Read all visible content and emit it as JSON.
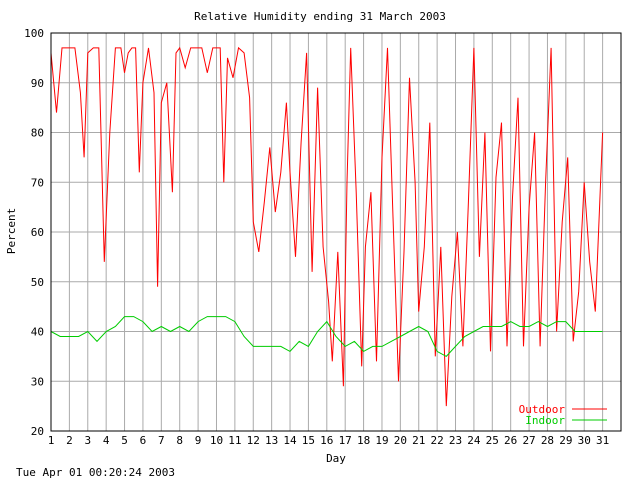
{
  "chart_data": {
    "type": "line",
    "title": "Relative Humidity ending 31 March 2003",
    "xlabel": "Day",
    "ylabel": "Percent",
    "xlim": [
      1,
      32
    ],
    "ylim": [
      20,
      100
    ],
    "x_ticks": [
      1,
      2,
      3,
      4,
      5,
      6,
      7,
      8,
      9,
      10,
      11,
      12,
      13,
      14,
      15,
      16,
      17,
      18,
      19,
      20,
      21,
      22,
      23,
      24,
      25,
      26,
      27,
      28,
      29,
      30,
      31
    ],
    "x_tick_labels": [
      "1",
      "2",
      "3",
      "4",
      "5",
      "6",
      "7",
      "8",
      "9",
      "10",
      "11",
      "12",
      "13",
      "14",
      "15",
      "16",
      "17",
      "18",
      "19",
      "20",
      "21",
      "22",
      "23",
      "24",
      "25",
      "26",
      "27",
      "28",
      "29",
      "30",
      "31"
    ],
    "y_ticks": [
      20,
      30,
      40,
      50,
      60,
      70,
      80,
      90,
      100
    ],
    "y_tick_labels": [
      "20",
      "30",
      "40",
      "50",
      "60",
      "70",
      "80",
      "90",
      "100"
    ],
    "grid": true,
    "legend_position": "bottom-right",
    "series": [
      {
        "name": "Outdoor",
        "color": "#ff0000",
        "points": [
          [
            1.0,
            96
          ],
          [
            1.3,
            84
          ],
          [
            1.6,
            97
          ],
          [
            2.0,
            97
          ],
          [
            2.3,
            97
          ],
          [
            2.6,
            88
          ],
          [
            2.8,
            75
          ],
          [
            3.0,
            96
          ],
          [
            3.3,
            97
          ],
          [
            3.6,
            97
          ],
          [
            3.9,
            54
          ],
          [
            4.2,
            80
          ],
          [
            4.5,
            97
          ],
          [
            4.8,
            97
          ],
          [
            5.0,
            92
          ],
          [
            5.2,
            96
          ],
          [
            5.4,
            97
          ],
          [
            5.6,
            97
          ],
          [
            5.8,
            72
          ],
          [
            6.0,
            90
          ],
          [
            6.3,
            97
          ],
          [
            6.6,
            88
          ],
          [
            6.8,
            49
          ],
          [
            7.0,
            86
          ],
          [
            7.3,
            90
          ],
          [
            7.6,
            68
          ],
          [
            7.8,
            96
          ],
          [
            8.0,
            97
          ],
          [
            8.3,
            93
          ],
          [
            8.6,
            97
          ],
          [
            8.9,
            97
          ],
          [
            9.2,
            97
          ],
          [
            9.5,
            92
          ],
          [
            9.8,
            97
          ],
          [
            10.0,
            97
          ],
          [
            10.2,
            97
          ],
          [
            10.4,
            70
          ],
          [
            10.6,
            95
          ],
          [
            10.9,
            91
          ],
          [
            11.2,
            97
          ],
          [
            11.5,
            96
          ],
          [
            11.8,
            87
          ],
          [
            12.0,
            62
          ],
          [
            12.3,
            56
          ],
          [
            12.6,
            66
          ],
          [
            12.9,
            77
          ],
          [
            13.2,
            64
          ],
          [
            13.5,
            72
          ],
          [
            13.8,
            86
          ],
          [
            14.0,
            72
          ],
          [
            14.3,
            55
          ],
          [
            14.6,
            78
          ],
          [
            14.9,
            96
          ],
          [
            15.2,
            52
          ],
          [
            15.5,
            89
          ],
          [
            15.8,
            57
          ],
          [
            16.1,
            46
          ],
          [
            16.3,
            34
          ],
          [
            16.6,
            56
          ],
          [
            16.9,
            29
          ],
          [
            17.1,
            70
          ],
          [
            17.3,
            97
          ],
          [
            17.6,
            68
          ],
          [
            17.9,
            33
          ],
          [
            18.1,
            57
          ],
          [
            18.4,
            68
          ],
          [
            18.7,
            34
          ],
          [
            19.0,
            75
          ],
          [
            19.3,
            97
          ],
          [
            19.6,
            63
          ],
          [
            19.9,
            30
          ],
          [
            20.2,
            56
          ],
          [
            20.5,
            91
          ],
          [
            20.8,
            70
          ],
          [
            21.0,
            44
          ],
          [
            21.3,
            57
          ],
          [
            21.6,
            82
          ],
          [
            21.9,
            35
          ],
          [
            22.2,
            57
          ],
          [
            22.5,
            25
          ],
          [
            22.8,
            47
          ],
          [
            23.1,
            60
          ],
          [
            23.4,
            37
          ],
          [
            23.7,
            66
          ],
          [
            24.0,
            97
          ],
          [
            24.3,
            55
          ],
          [
            24.6,
            80
          ],
          [
            24.9,
            36
          ],
          [
            25.2,
            71
          ],
          [
            25.5,
            82
          ],
          [
            25.8,
            37
          ],
          [
            26.1,
            67
          ],
          [
            26.4,
            87
          ],
          [
            26.7,
            37
          ],
          [
            27.0,
            65
          ],
          [
            27.3,
            80
          ],
          [
            27.6,
            37
          ],
          [
            27.9,
            70
          ],
          [
            28.2,
            97
          ],
          [
            28.5,
            40
          ],
          [
            28.8,
            62
          ],
          [
            29.1,
            75
          ],
          [
            29.4,
            38
          ],
          [
            29.7,
            48
          ],
          [
            30.0,
            70
          ],
          [
            30.3,
            54
          ],
          [
            30.6,
            44
          ],
          [
            31.0,
            80
          ]
        ]
      },
      {
        "name": "Indoor",
        "color": "#00cc00",
        "points": [
          [
            1.0,
            40
          ],
          [
            1.5,
            39
          ],
          [
            2.0,
            39
          ],
          [
            2.5,
            39
          ],
          [
            3.0,
            40
          ],
          [
            3.5,
            38
          ],
          [
            4.0,
            40
          ],
          [
            4.5,
            41
          ],
          [
            5.0,
            43
          ],
          [
            5.5,
            43
          ],
          [
            6.0,
            42
          ],
          [
            6.5,
            40
          ],
          [
            7.0,
            41
          ],
          [
            7.5,
            40
          ],
          [
            8.0,
            41
          ],
          [
            8.5,
            40
          ],
          [
            9.0,
            42
          ],
          [
            9.5,
            43
          ],
          [
            10.0,
            43
          ],
          [
            10.5,
            43
          ],
          [
            11.0,
            42
          ],
          [
            11.5,
            39
          ],
          [
            12.0,
            37
          ],
          [
            12.5,
            37
          ],
          [
            13.0,
            37
          ],
          [
            13.5,
            37
          ],
          [
            14.0,
            36
          ],
          [
            14.5,
            38
          ],
          [
            15.0,
            37
          ],
          [
            15.5,
            40
          ],
          [
            16.0,
            42
          ],
          [
            16.5,
            39
          ],
          [
            17.0,
            37
          ],
          [
            17.5,
            38
          ],
          [
            18.0,
            36
          ],
          [
            18.5,
            37
          ],
          [
            19.0,
            37
          ],
          [
            19.5,
            38
          ],
          [
            20.0,
            39
          ],
          [
            20.5,
            40
          ],
          [
            21.0,
            41
          ],
          [
            21.5,
            40
          ],
          [
            22.0,
            36
          ],
          [
            22.5,
            35
          ],
          [
            23.0,
            37
          ],
          [
            23.5,
            39
          ],
          [
            24.0,
            40
          ],
          [
            24.5,
            41
          ],
          [
            25.0,
            41
          ],
          [
            25.5,
            41
          ],
          [
            26.0,
            42
          ],
          [
            26.5,
            41
          ],
          [
            27.0,
            41
          ],
          [
            27.5,
            42
          ],
          [
            28.0,
            41
          ],
          [
            28.5,
            42
          ],
          [
            29.0,
            42
          ],
          [
            29.5,
            40
          ],
          [
            30.0,
            40
          ],
          [
            30.5,
            40
          ],
          [
            31.0,
            40
          ]
        ]
      }
    ]
  },
  "footer": {
    "timestamp": "Tue Apr 01 00:20:24 2003"
  }
}
